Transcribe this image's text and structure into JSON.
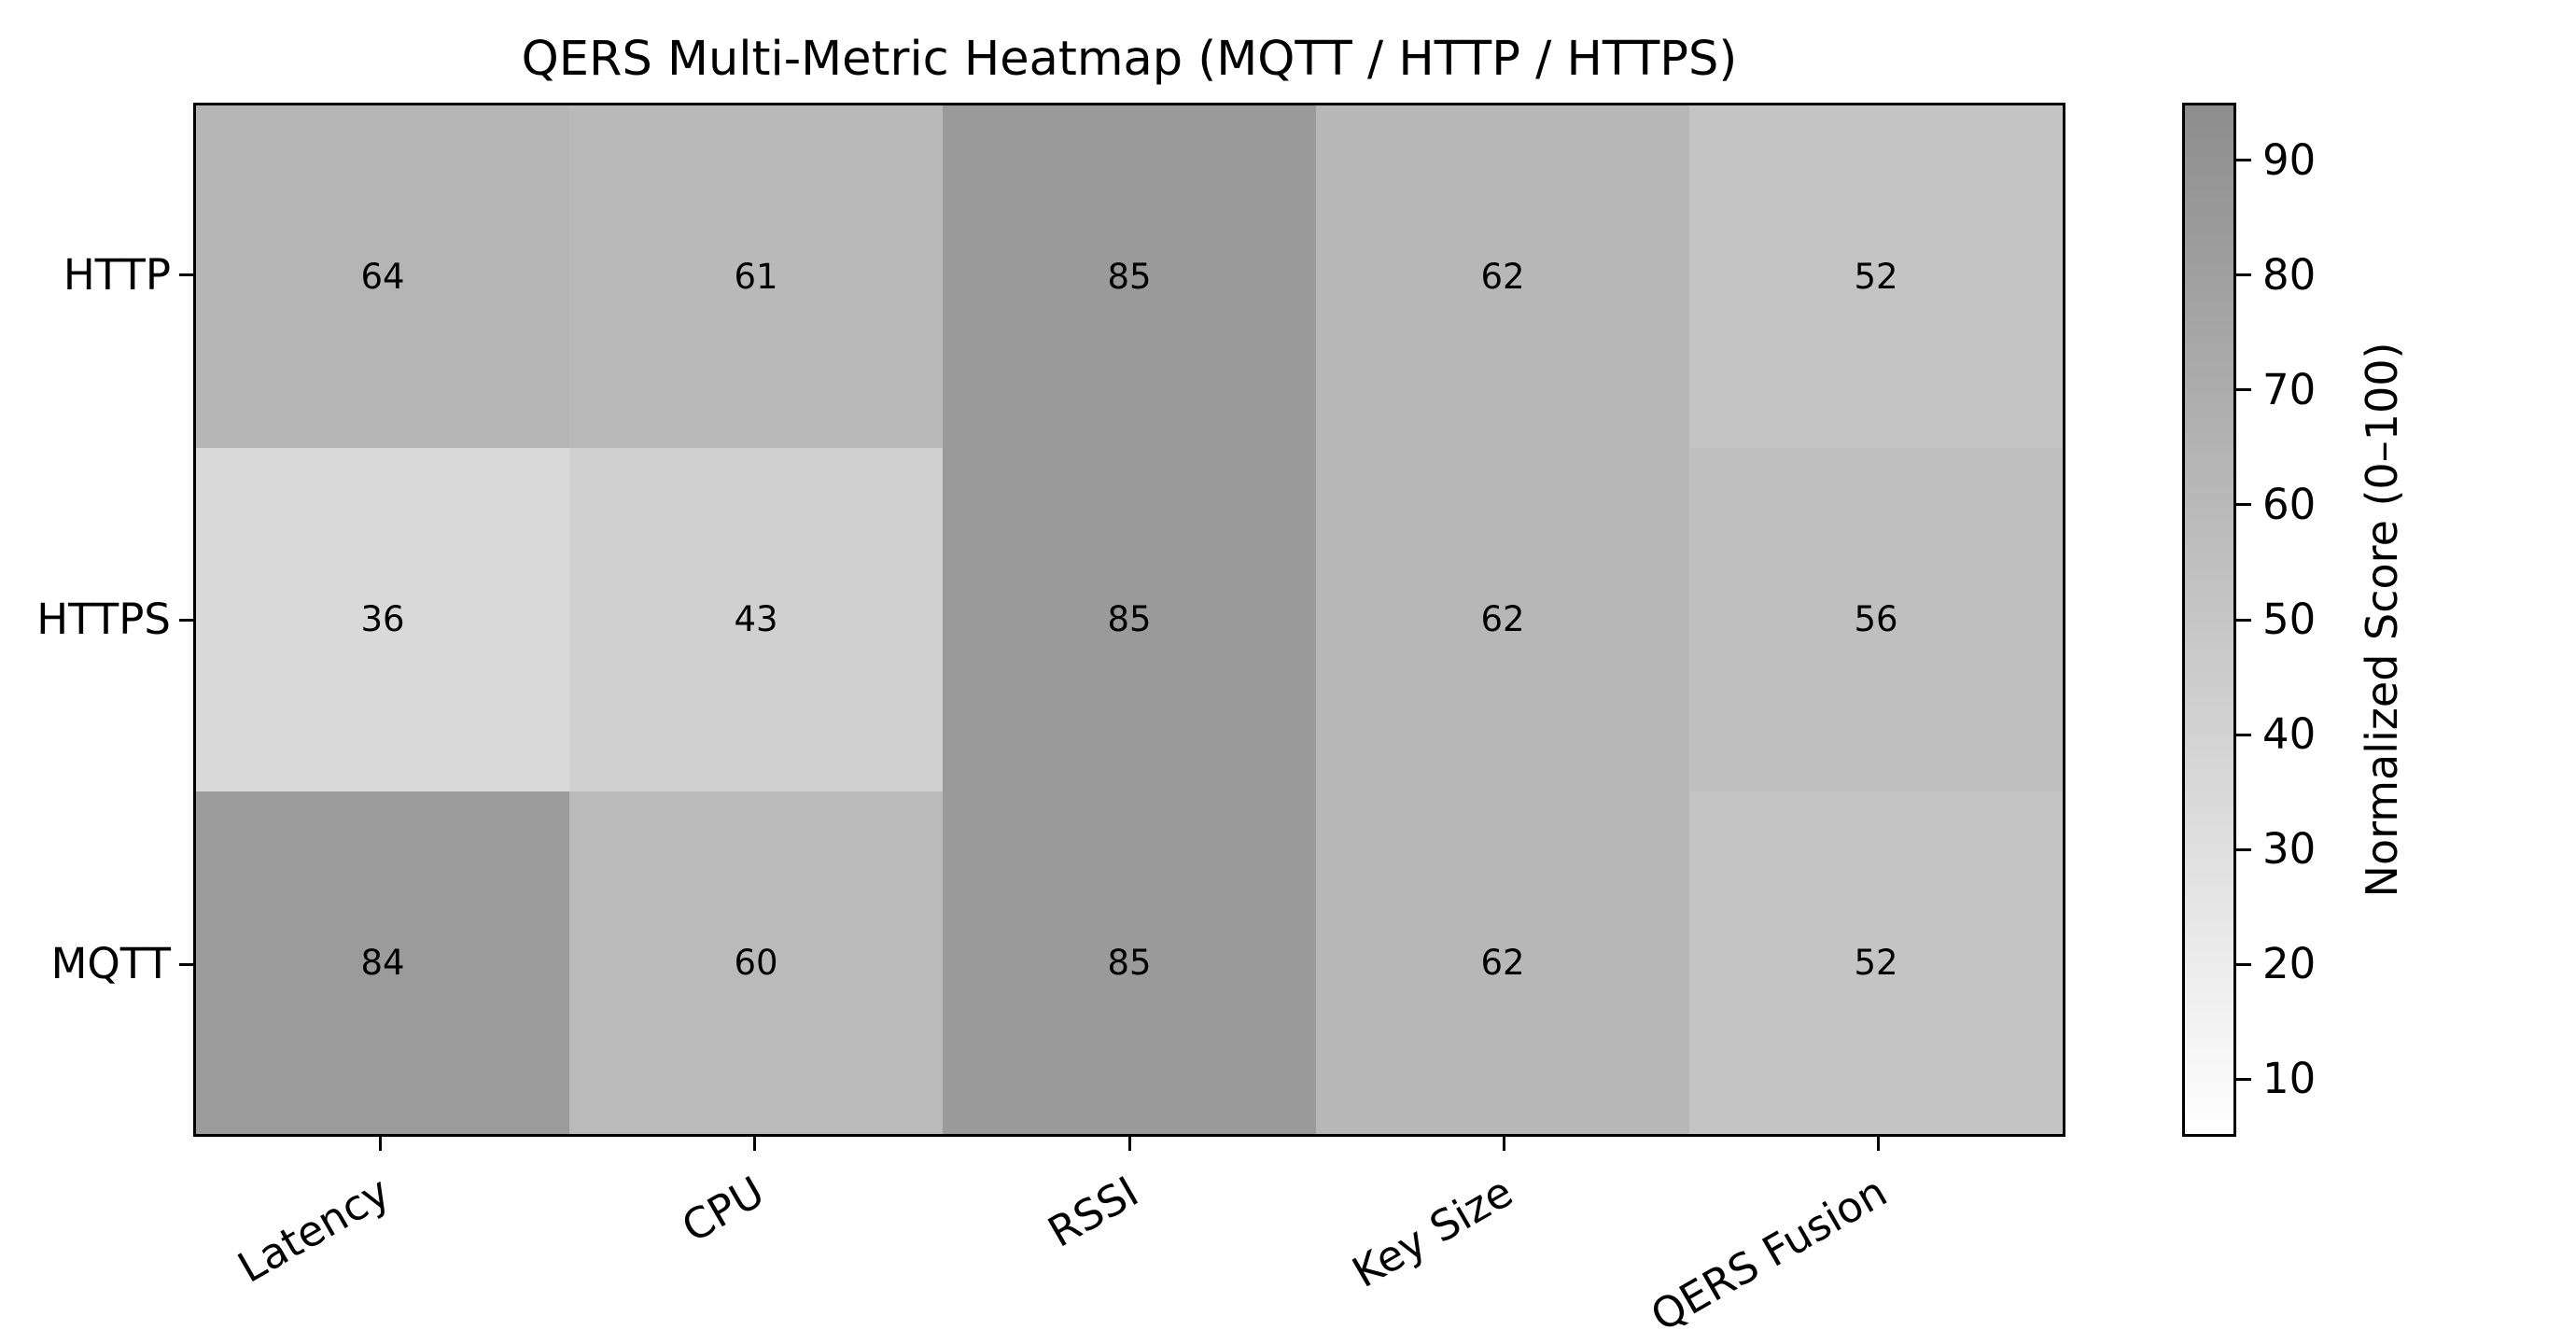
{
  "chart_data": {
    "type": "heatmap",
    "title": "QERS Multi-Metric Heatmap (MQTT / HTTP / HTTPS)",
    "rows": [
      "HTTP",
      "HTTPS",
      "MQTT"
    ],
    "columns": [
      "Latency",
      "CPU",
      "RSSI",
      "Key Size",
      "QERS Fusion"
    ],
    "values": [
      [
        64,
        61,
        85,
        62,
        52
      ],
      [
        36,
        43,
        85,
        62,
        56
      ],
      [
        84,
        60,
        85,
        62,
        52
      ]
    ],
    "colorbar": {
      "label": "Normalized Score (0–100)",
      "ticks": [
        90,
        80,
        70,
        60,
        50,
        40,
        30,
        20,
        10
      ],
      "scale_min": 5,
      "scale_max": 95
    },
    "colormap": "greys",
    "color_scale": {
      "value_at_white": 6,
      "ref_value": 85,
      "ref_grey": 154
    },
    "x_tick_rotation_deg": 30,
    "grid": false,
    "legend": false,
    "text_color": "#000000",
    "background_color": "#ffffff"
  }
}
